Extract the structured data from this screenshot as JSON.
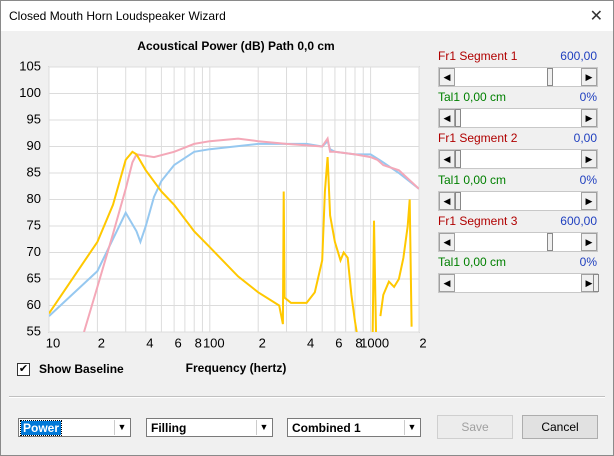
{
  "window": {
    "title": "Closed Mouth Horn Loudspeaker Wizard"
  },
  "chart_data": {
    "type": "line",
    "title": "Acoustical Power (dB)   Path 0,0 cm",
    "x_label": "Frequency (hertz)",
    "x_scale": "log",
    "grid": true,
    "xlim": [
      10,
      2000
    ],
    "ylim": [
      55,
      105
    ],
    "xticks": [
      10,
      {
        "value": 20,
        "label": "2"
      },
      {
        "value": 40,
        "label": "4"
      },
      {
        "value": 60,
        "label": "6"
      },
      {
        "value": 80,
        "label": "8"
      },
      100,
      {
        "value": 200,
        "label": "2"
      },
      {
        "value": 400,
        "label": "4"
      },
      {
        "value": 600,
        "label": "6"
      },
      {
        "value": 800,
        "label": "8"
      },
      1000,
      {
        "value": 2000,
        "label": "2"
      }
    ],
    "x_minor_grid": [
      30,
      50,
      70,
      90,
      300,
      500,
      700,
      900
    ],
    "yticks": [
      55,
      60,
      65,
      70,
      75,
      80,
      85,
      90,
      95,
      100,
      105
    ],
    "series": [
      {
        "color": "#96c8f0",
        "x": [
          10,
          20,
          30,
          35,
          37,
          40,
          45,
          50,
          60,
          80,
          100,
          200,
          400,
          500,
          540,
          560,
          600,
          800,
          1000,
          1200,
          1500,
          2000
        ],
        "values": [
          58,
          66.5,
          77.5,
          74,
          72,
          75,
          80.5,
          83.5,
          86.5,
          89,
          89.5,
          90.5,
          90.5,
          90,
          91,
          89.5,
          89,
          88.5,
          88.5,
          87,
          85,
          82
        ]
      },
      {
        "color": "#f4a8b8",
        "x": [
          16.5,
          20,
          25,
          30,
          33,
          35,
          45,
          60,
          80,
          100,
          150,
          200,
          300,
          500,
          540,
          560,
          600,
          800,
          1000,
          1100,
          1200,
          1500,
          2000
        ],
        "values": [
          55,
          63.5,
          73.5,
          82,
          87,
          88.5,
          88,
          89,
          90.5,
          91,
          91.5,
          91,
          90.5,
          90,
          91.5,
          89,
          89,
          88.5,
          88,
          87.5,
          86.5,
          85.5,
          82
        ]
      },
      {
        "color": "#ffc800",
        "x": [
          10,
          20,
          25,
          30,
          33,
          35,
          40,
          50,
          60,
          80,
          100,
          150,
          200,
          270,
          285,
          288,
          292,
          320,
          400,
          450,
          500,
          520,
          540,
          560,
          600,
          650,
          680,
          720,
          760,
          800,
          820,
          900,
          1030,
          1050,
          1080,
          1100,
          1150,
          1200,
          1300,
          1400,
          1500,
          1600,
          1700,
          1750,
          1800
        ],
        "values": [
          58.5,
          72,
          79,
          87.5,
          89,
          88.5,
          85.5,
          81.5,
          79,
          74,
          71,
          65.5,
          62.5,
          60,
          56.5,
          81.5,
          61.5,
          60.5,
          60.5,
          62.5,
          68.5,
          81.5,
          88,
          77,
          72,
          68.5,
          70,
          69,
          62,
          57,
          55,
          null,
          55,
          76,
          55,
          null,
          58,
          62,
          64.5,
          63.5,
          65,
          69,
          75,
          80,
          56
        ]
      }
    ]
  },
  "show_baseline": {
    "label": "Show Baseline",
    "checked": true
  },
  "sliders": [
    {
      "label": "Fr1  Segment 1",
      "value": "600,00"
    },
    {
      "label": "Tal1  0,00 cm",
      "value": "0%"
    },
    {
      "label": "Fr1  Segment 2",
      "value": "0,00"
    },
    {
      "label": "Tal1  0,00 cm",
      "value": "0%"
    },
    {
      "label": "Fr1  Segment 3",
      "value": "600,00"
    },
    {
      "label": "Tal1  0,00 cm",
      "value": "0%"
    }
  ],
  "dropdowns": [
    "Power",
    "Filling",
    "Combined 1"
  ],
  "buttons": [
    {
      "label": "Save",
      "enabled": false
    },
    {
      "label": "Cancel",
      "enabled": true
    }
  ]
}
